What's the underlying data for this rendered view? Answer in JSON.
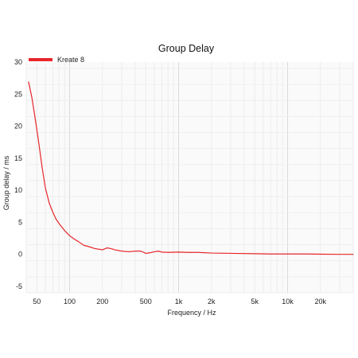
{
  "chart_data": {
    "type": "line",
    "title": "Group Delay",
    "xlabel": "Frequency / Hz",
    "ylabel": "Group delay / ms",
    "x_scale": "log",
    "xlim": [
      40,
      40000
    ],
    "ylim": [
      -6,
      30
    ],
    "x_ticks": [
      {
        "value": 50,
        "label": "50"
      },
      {
        "value": 100,
        "label": "100"
      },
      {
        "value": 200,
        "label": "200"
      },
      {
        "value": 500,
        "label": "500"
      },
      {
        "value": 1000,
        "label": "1k"
      },
      {
        "value": 2000,
        "label": "2k"
      },
      {
        "value": 5000,
        "label": "5k"
      },
      {
        "value": 10000,
        "label": "10k"
      },
      {
        "value": 20000,
        "label": "20k"
      }
    ],
    "y_ticks": [
      {
        "value": 30,
        "label": "30"
      },
      {
        "value": 25,
        "label": "25"
      },
      {
        "value": 20,
        "label": "20"
      },
      {
        "value": 15,
        "label": "15"
      },
      {
        "value": 10,
        "label": "10"
      },
      {
        "value": 5,
        "label": "5"
      },
      {
        "value": 0,
        "label": "0"
      },
      {
        "value": -5,
        "label": "-5"
      }
    ],
    "grid": true,
    "legend": {
      "position": "top-left"
    },
    "series": [
      {
        "name": "Kreate 8",
        "color": "#e8252a",
        "x": [
          42,
          45,
          48,
          52,
          56,
          60,
          65,
          70,
          75,
          80,
          90,
          100,
          110,
          120,
          135,
          150,
          170,
          200,
          220,
          240,
          260,
          300,
          350,
          400,
          450,
          500,
          550,
          600,
          650,
          700,
          800,
          1000,
          1200,
          1500,
          2000,
          3000,
          5000,
          7000,
          10000,
          15000,
          20000,
          30000,
          40000
        ],
        "values": [
          26.9,
          24.5,
          21.5,
          17.5,
          13.5,
          10.3,
          8.0,
          6.6,
          5.5,
          4.8,
          3.7,
          2.9,
          2.4,
          2.0,
          1.4,
          1.2,
          0.9,
          0.7,
          1.0,
          0.9,
          0.7,
          0.5,
          0.4,
          0.5,
          0.5,
          0.15,
          0.25,
          0.4,
          0.5,
          0.35,
          0.3,
          0.35,
          0.3,
          0.3,
          0.2,
          0.15,
          0.1,
          0.05,
          0.05,
          0.05,
          0.02,
          0.0,
          0.0
        ]
      }
    ]
  }
}
